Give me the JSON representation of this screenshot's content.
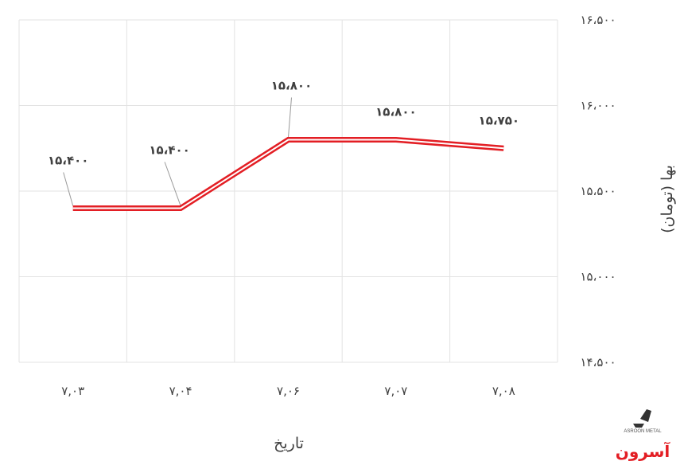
{
  "chart_data": {
    "type": "line",
    "categories": [
      "۷,۰۳",
      "۷,۰۴",
      "۷,۰۶",
      "۷,۰۷",
      "۷,۰۸"
    ],
    "series": [
      {
        "values": [
          15400,
          15400,
          15800,
          15800,
          15750
        ],
        "color": "#e31e24"
      }
    ],
    "data_labels": [
      "۱۵،۴۰۰",
      "۱۵،۴۰۰",
      "۱۵،۸۰۰",
      "۱۵،۸۰۰",
      "۱۵،۷۵۰"
    ],
    "y_ticks": [
      14500,
      15000,
      15500,
      16000,
      16500
    ],
    "y_tick_labels": [
      "۱۴،۵۰۰",
      "۱۵،۰۰۰",
      "۱۵،۵۰۰",
      "۱۶،۰۰۰",
      "۱۶،۵۰۰"
    ],
    "ylim": [
      14500,
      16500
    ],
    "xlabel": "تاریخ",
    "ylabel": "بها (تومان)",
    "y_axis_side": "right",
    "grid": true,
    "legend": "none"
  },
  "logo": {
    "text_fa": "آسرون",
    "text_en": "ASROON METAL",
    "color": "#e31e24"
  }
}
